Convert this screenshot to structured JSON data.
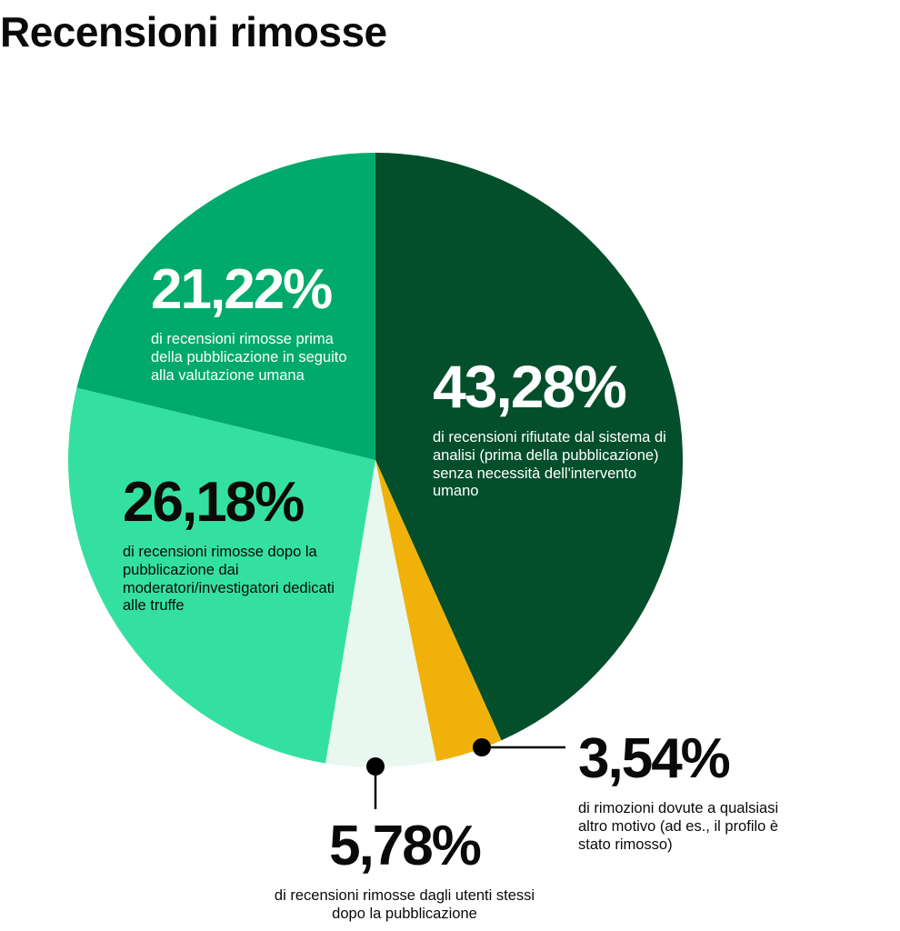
{
  "chart_data": {
    "type": "pie",
    "title": "Recensioni rimosse",
    "slices": [
      {
        "value": 43.28,
        "label": "43,28%",
        "description": "di recensioni rifiutate dal sistema di analisi (prima della pubblicazione) senza necessità dell'intervento umano",
        "color": "#044f2b"
      },
      {
        "value": 3.54,
        "label": "3,54%",
        "description": "di rimozioni dovute a qualsiasi altro motivo (ad es., il profilo è stato rimosso)",
        "color": "#f0b20a"
      },
      {
        "value": 5.78,
        "label": "5,78%",
        "description": "di recensioni rimosse dagli utenti stessi dopo la pubblicazione",
        "color": "#e8f8f0"
      },
      {
        "value": 26.18,
        "label": "26,18%",
        "description": "di recensioni rimosse dopo la pubblicazione dai moderatori/investigatori dedicati alle truffe",
        "color": "#34e0a1"
      },
      {
        "value": 21.22,
        "label": "21,22%",
        "description": "di recensioni rimosse prima della pubblicazione in seguito alla valutazione umana",
        "color": "#00aa6c"
      }
    ]
  }
}
